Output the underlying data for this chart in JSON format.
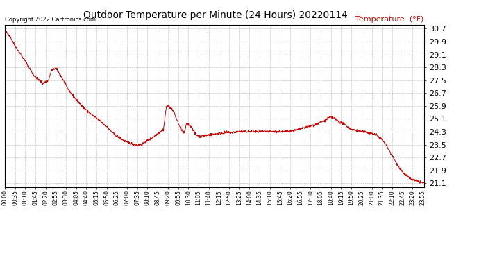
{
  "title": "Outdoor Temperature per Minute (24 Hours) 20220114",
  "copyright_text": "Copyright 2022 Cartronics.com",
  "legend_label": "Temperature  (°F)",
  "line_color": "#cc0000",
  "legend_color": "#cc0000",
  "bg_color": "#ffffff",
  "grid_color": "#888888",
  "yticks": [
    21.1,
    21.9,
    22.7,
    23.5,
    24.3,
    25.1,
    25.9,
    26.7,
    27.5,
    28.3,
    29.1,
    29.9,
    30.7
  ],
  "ylim": [
    20.85,
    30.95
  ],
  "total_minutes": 1440,
  "xtick_step": 35,
  "keypoints": [
    [
      0,
      30.6
    ],
    [
      15,
      30.3
    ],
    [
      40,
      29.5
    ],
    [
      70,
      28.7
    ],
    [
      100,
      27.8
    ],
    [
      130,
      27.3
    ],
    [
      150,
      27.5
    ],
    [
      160,
      28.1
    ],
    [
      175,
      28.25
    ],
    [
      195,
      27.7
    ],
    [
      215,
      27.0
    ],
    [
      240,
      26.4
    ],
    [
      265,
      25.9
    ],
    [
      295,
      25.4
    ],
    [
      325,
      25.0
    ],
    [
      350,
      24.6
    ],
    [
      375,
      24.15
    ],
    [
      400,
      23.85
    ],
    [
      420,
      23.65
    ],
    [
      440,
      23.55
    ],
    [
      455,
      23.45
    ],
    [
      470,
      23.5
    ],
    [
      485,
      23.7
    ],
    [
      500,
      23.85
    ],
    [
      515,
      24.05
    ],
    [
      530,
      24.25
    ],
    [
      545,
      24.45
    ],
    [
      555,
      25.9
    ],
    [
      565,
      25.85
    ],
    [
      575,
      25.7
    ],
    [
      585,
      25.3
    ],
    [
      595,
      24.85
    ],
    [
      605,
      24.5
    ],
    [
      615,
      24.2
    ],
    [
      625,
      24.8
    ],
    [
      635,
      24.7
    ],
    [
      645,
      24.5
    ],
    [
      655,
      24.1
    ],
    [
      665,
      24.05
    ],
    [
      675,
      24.0
    ],
    [
      685,
      24.05
    ],
    [
      700,
      24.1
    ],
    [
      720,
      24.15
    ],
    [
      740,
      24.2
    ],
    [
      760,
      24.25
    ],
    [
      780,
      24.25
    ],
    [
      800,
      24.3
    ],
    [
      820,
      24.3
    ],
    [
      840,
      24.3
    ],
    [
      860,
      24.3
    ],
    [
      880,
      24.3
    ],
    [
      900,
      24.3
    ],
    [
      920,
      24.3
    ],
    [
      940,
      24.3
    ],
    [
      960,
      24.3
    ],
    [
      980,
      24.35
    ],
    [
      1000,
      24.4
    ],
    [
      1020,
      24.5
    ],
    [
      1040,
      24.6
    ],
    [
      1060,
      24.7
    ],
    [
      1080,
      24.85
    ],
    [
      1100,
      25.0
    ],
    [
      1110,
      25.15
    ],
    [
      1120,
      25.2
    ],
    [
      1130,
      25.15
    ],
    [
      1150,
      24.9
    ],
    [
      1170,
      24.7
    ],
    [
      1185,
      24.5
    ],
    [
      1200,
      24.4
    ],
    [
      1215,
      24.35
    ],
    [
      1230,
      24.3
    ],
    [
      1245,
      24.25
    ],
    [
      1260,
      24.2
    ],
    [
      1275,
      24.1
    ],
    [
      1290,
      23.9
    ],
    [
      1305,
      23.6
    ],
    [
      1315,
      23.3
    ],
    [
      1330,
      22.8
    ],
    [
      1350,
      22.2
    ],
    [
      1370,
      21.7
    ],
    [
      1390,
      21.4
    ],
    [
      1410,
      21.25
    ],
    [
      1430,
      21.15
    ],
    [
      1439,
      21.1
    ]
  ]
}
